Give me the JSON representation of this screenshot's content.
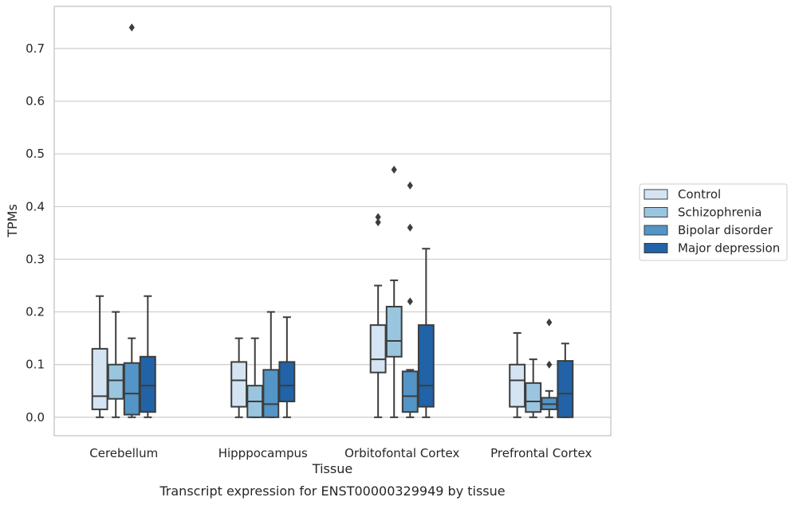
{
  "chart_data": {
    "type": "box",
    "xlabel": "Tissue",
    "ylabel": "TPMs",
    "caption": "Transcript expression for ENST00000329949 by tissue",
    "ylim": [
      -0.035,
      0.78
    ],
    "yticks": [
      "0.0",
      "0.1",
      "0.2",
      "0.3",
      "0.4",
      "0.5",
      "0.6",
      "0.7"
    ],
    "grid": "horizontal",
    "legend_position": "right",
    "categories": [
      "Cerebellum",
      "Hipppocampus",
      "Orbitofontal Cortex",
      "Prefrontal Cortex"
    ],
    "series": [
      {
        "name": "Control",
        "color": "#d4e4f2",
        "boxes": [
          {
            "whislo": 0.0,
            "q1": 0.015,
            "med": 0.04,
            "q3": 0.13,
            "whishi": 0.23,
            "fliers": []
          },
          {
            "whislo": 0.0,
            "q1": 0.02,
            "med": 0.07,
            "q3": 0.105,
            "whishi": 0.15,
            "fliers": []
          },
          {
            "whislo": 0.0,
            "q1": 0.085,
            "med": 0.11,
            "q3": 0.175,
            "whishi": 0.25,
            "fliers": [
              0.37,
              0.38
            ]
          },
          {
            "whislo": 0.0,
            "q1": 0.02,
            "med": 0.07,
            "q3": 0.1,
            "whishi": 0.16,
            "fliers": []
          }
        ]
      },
      {
        "name": "Schizophrenia",
        "color": "#9ac5df",
        "boxes": [
          {
            "whislo": 0.0,
            "q1": 0.035,
            "med": 0.07,
            "q3": 0.1,
            "whishi": 0.2,
            "fliers": []
          },
          {
            "whislo": 0.0,
            "q1": 0.0,
            "med": 0.03,
            "q3": 0.06,
            "whishi": 0.15,
            "fliers": []
          },
          {
            "whislo": 0.0,
            "q1": 0.115,
            "med": 0.145,
            "q3": 0.21,
            "whishi": 0.26,
            "fliers": [
              0.47
            ]
          },
          {
            "whislo": 0.0,
            "q1": 0.01,
            "med": 0.03,
            "q3": 0.065,
            "whishi": 0.11,
            "fliers": []
          }
        ]
      },
      {
        "name": "Bipolar disorder",
        "color": "#5295c6",
        "boxes": [
          {
            "whislo": 0.0,
            "q1": 0.005,
            "med": 0.045,
            "q3": 0.103,
            "whishi": 0.15,
            "fliers": [
              0.74
            ]
          },
          {
            "whislo": 0.0,
            "q1": 0.0,
            "med": 0.025,
            "q3": 0.09,
            "whishi": 0.2,
            "fliers": []
          },
          {
            "whislo": 0.0,
            "q1": 0.01,
            "med": 0.04,
            "q3": 0.087,
            "whishi": 0.09,
            "fliers": [
              0.22,
              0.36,
              0.44
            ]
          },
          {
            "whislo": 0.0,
            "q1": 0.015,
            "med": 0.025,
            "q3": 0.037,
            "whishi": 0.05,
            "fliers": [
              0.1,
              0.18
            ]
          }
        ]
      },
      {
        "name": "Major depression",
        "color": "#2163a6",
        "boxes": [
          {
            "whislo": 0.0,
            "q1": 0.01,
            "med": 0.06,
            "q3": 0.115,
            "whishi": 0.23,
            "fliers": []
          },
          {
            "whislo": 0.0,
            "q1": 0.03,
            "med": 0.06,
            "q3": 0.105,
            "whishi": 0.19,
            "fliers": []
          },
          {
            "whislo": 0.0,
            "q1": 0.02,
            "med": 0.06,
            "q3": 0.175,
            "whishi": 0.32,
            "fliers": []
          },
          {
            "whislo": 0.0,
            "q1": 0.0,
            "med": 0.045,
            "q3": 0.107,
            "whishi": 0.14,
            "fliers": []
          }
        ]
      }
    ]
  }
}
